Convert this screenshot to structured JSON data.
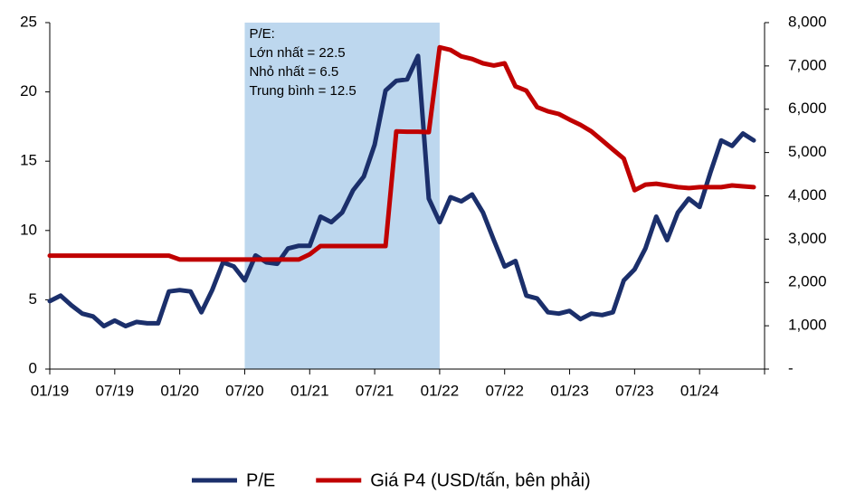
{
  "chart_data": {
    "type": "line",
    "categories": [
      "01/19",
      null,
      null,
      null,
      null,
      null,
      "07/19",
      null,
      null,
      null,
      null,
      null,
      "01/20",
      null,
      null,
      null,
      null,
      null,
      "07/20",
      null,
      null,
      null,
      null,
      null,
      "01/21",
      null,
      null,
      null,
      null,
      null,
      "07/21",
      null,
      null,
      null,
      null,
      null,
      "01/22",
      null,
      null,
      null,
      null,
      null,
      "07/22",
      null,
      null,
      null,
      null,
      null,
      "01/23",
      null,
      null,
      null,
      null,
      null,
      "07/23",
      null,
      null,
      null,
      null,
      null,
      "01/24",
      null,
      null,
      null,
      null,
      null
    ],
    "series": [
      {
        "name": "P/E",
        "color": "#1b2f6b",
        "values": [
          4.9,
          5.3,
          4.6,
          4.0,
          3.8,
          3.1,
          3.5,
          3.1,
          3.4,
          3.3,
          3.3,
          5.6,
          5.7,
          5.6,
          4.1,
          5.7,
          7.7,
          7.4,
          6.4,
          8.2,
          7.7,
          7.6,
          8.7,
          8.9,
          8.9,
          11.0,
          10.6,
          11.3,
          12.9,
          13.9,
          16.2,
          20.1,
          20.8,
          20.9,
          22.6,
          12.3,
          10.6,
          12.4,
          12.1,
          12.6,
          11.3,
          9.3,
          7.4,
          7.8,
          5.3,
          5.1,
          4.1,
          4.0,
          4.2,
          3.6,
          4.0,
          3.9,
          4.1,
          6.4,
          7.2,
          8.7,
          11.0,
          9.3,
          11.3,
          12.3,
          11.7,
          14.2,
          16.5,
          16.1,
          17.0,
          16.5
        ]
      },
      {
        "name": "Giá P4 (USD/tấn, bên phải)",
        "color": "#c00000",
        "axis": "y2",
        "values": [
          2620,
          2620,
          2620,
          2620,
          2620,
          2620,
          2620,
          2620,
          2620,
          2620,
          2620,
          2620,
          2530,
          2530,
          2530,
          2530,
          2530,
          2530,
          2530,
          2530,
          2530,
          2530,
          2530,
          2530,
          2650,
          2840,
          2840,
          2840,
          2840,
          2840,
          2840,
          2840,
          5490,
          5480,
          5480,
          5470,
          7430,
          7370,
          7220,
          7160,
          7060,
          7010,
          7060,
          6530,
          6430,
          6050,
          5950,
          5890,
          5760,
          5640,
          5490,
          5280,
          5070,
          4860,
          4130,
          4260,
          4280,
          4240,
          4200,
          4180,
          4200,
          4200,
          4200,
          4240,
          4220,
          4200
        ]
      }
    ],
    "ylim": [
      0,
      25
    ],
    "yticks": [
      0,
      5,
      10,
      15,
      20,
      25
    ],
    "y2lim": [
      0,
      8000
    ],
    "y2ticks": [
      {
        "value": 0,
        "label": "-"
      },
      {
        "value": 1000,
        "label": "1,000"
      },
      {
        "value": 2000,
        "label": "2,000"
      },
      {
        "value": 3000,
        "label": "3,000"
      },
      {
        "value": 4000,
        "label": "4,000"
      },
      {
        "value": 5000,
        "label": "5,000"
      },
      {
        "value": 6000,
        "label": "6,000"
      },
      {
        "value": 7000,
        "label": "7,000"
      },
      {
        "value": 8000,
        "label": "8,000"
      }
    ],
    "highlight": {
      "start": "07/20",
      "end": "01/22",
      "color": "#bdd7ee"
    },
    "annotation": [
      "P/E:",
      "Lớn nhất = 22.5",
      "Nhỏ nhất = 6.5",
      "Trung bình = 12.5"
    ],
    "grid": false,
    "legend": "bottom"
  }
}
